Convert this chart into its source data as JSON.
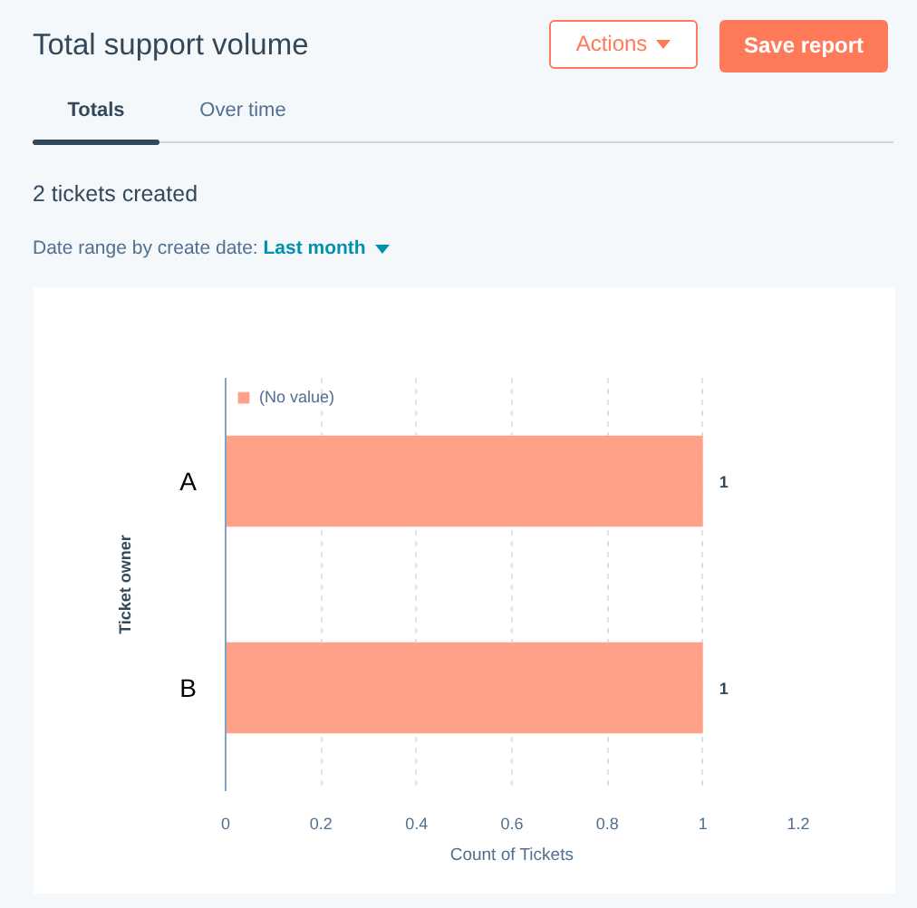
{
  "chart_data": {
    "type": "bar",
    "orientation": "horizontal",
    "title": "Total support volume",
    "annotations": [
      "Actions",
      "Save report",
      "Totals",
      "Over time",
      "2 tickets created",
      "Date range by create date:",
      "Last month"
    ],
    "xlabel": "Count of Tickets",
    "ylabel": "Ticket owner",
    "categories": [
      "A",
      "B"
    ],
    "series": [
      {
        "name": "(No value)",
        "color": "#ffa188",
        "values": [
          1,
          1
        ]
      }
    ],
    "xlim": [
      0,
      1.2
    ],
    "xticks": [
      0,
      0.2,
      0.4,
      0.6,
      0.8,
      1,
      1.2
    ],
    "grid": "x",
    "legend": "top left",
    "data_labels": true
  }
}
